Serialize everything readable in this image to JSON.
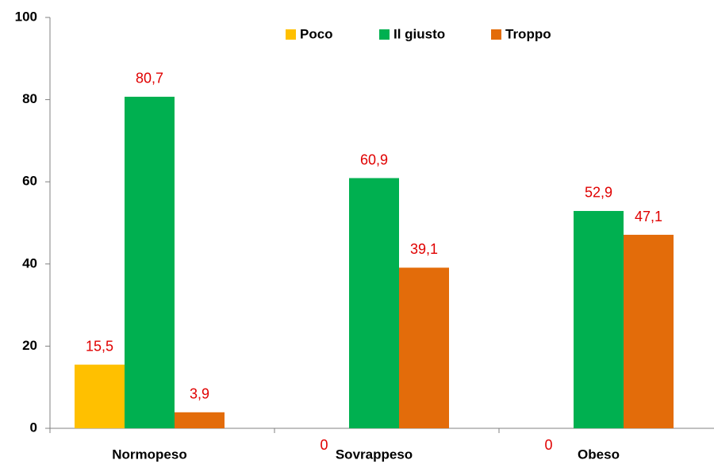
{
  "chart_data": {
    "type": "bar",
    "categories": [
      "Normopeso",
      "Sovrappeso",
      "Obeso"
    ],
    "series": [
      {
        "name": "Poco",
        "color": "#ffc000",
        "values": [
          15.5,
          0,
          0
        ],
        "value_labels": [
          "15,5",
          "0",
          "0"
        ]
      },
      {
        "name": "Il giusto",
        "color": "#00b050",
        "values": [
          80.7,
          60.9,
          52.9
        ],
        "value_labels": [
          "80,7",
          "60,9",
          "52,9"
        ]
      },
      {
        "name": "Troppo",
        "color": "#e36c0a",
        "values": [
          3.9,
          39.1,
          47.1
        ],
        "value_labels": [
          "3,9",
          "39,1",
          "47,1"
        ]
      }
    ],
    "ylim": [
      0,
      100
    ],
    "yticks": [
      0,
      20,
      40,
      60,
      80,
      100
    ],
    "legend": "top"
  }
}
